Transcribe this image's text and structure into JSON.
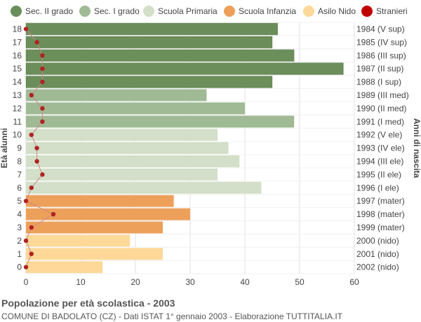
{
  "chart_data": {
    "type": "bar",
    "orientation": "horizontal",
    "title": "Popolazione per età scolastica - 2003",
    "subtitle": "COMUNE DI BADOLATO (CZ) - Dati ISTAT 1° gennaio 2003 - Elaborazione TUTTITALIA.IT",
    "ylabel_left": "Età alunni",
    "ylabel_right": "Anni di nascita",
    "xlim": [
      0,
      60
    ],
    "xticks": [
      0,
      10,
      20,
      30,
      40,
      50,
      60
    ],
    "grid": true,
    "legend_position": "top",
    "legend": [
      {
        "name": "Sec. II grado",
        "color": "#6b8e5a"
      },
      {
        "name": "Sec. I grado",
        "color": "#9fba94"
      },
      {
        "name": "Scuola Primaria",
        "color": "#d3dfc8"
      },
      {
        "name": "Scuola Infanzia",
        "color": "#eda05a"
      },
      {
        "name": "Asilo Nido",
        "color": "#fdd898"
      },
      {
        "name": "Stranieri",
        "color": "#c00000"
      }
    ],
    "rows": [
      {
        "age": "18",
        "birth": "1984 (V sup)",
        "value": 46,
        "stranieri": 0,
        "group": 0
      },
      {
        "age": "17",
        "birth": "1985 (IV sup)",
        "value": 45,
        "stranieri": 2,
        "group": 0
      },
      {
        "age": "16",
        "birth": "1986 (III sup)",
        "value": 49,
        "stranieri": 3,
        "group": 0
      },
      {
        "age": "15",
        "birth": "1987 (II sup)",
        "value": 58,
        "stranieri": 3,
        "group": 0
      },
      {
        "age": "14",
        "birth": "1988 (I sup)",
        "value": 45,
        "stranieri": 3,
        "group": 0
      },
      {
        "age": "13",
        "birth": "1989 (III med)",
        "value": 33,
        "stranieri": 1,
        "group": 1
      },
      {
        "age": "12",
        "birth": "1990 (II med)",
        "value": 40,
        "stranieri": 3,
        "group": 1
      },
      {
        "age": "11",
        "birth": "1991 (I med)",
        "value": 49,
        "stranieri": 3,
        "group": 1
      },
      {
        "age": "10",
        "birth": "1992 (V ele)",
        "value": 35,
        "stranieri": 1,
        "group": 2
      },
      {
        "age": "9",
        "birth": "1993 (IV ele)",
        "value": 37,
        "stranieri": 2,
        "group": 2
      },
      {
        "age": "8",
        "birth": "1994 (III ele)",
        "value": 39,
        "stranieri": 2,
        "group": 2
      },
      {
        "age": "7",
        "birth": "1995 (II ele)",
        "value": 35,
        "stranieri": 3,
        "group": 2
      },
      {
        "age": "6",
        "birth": "1996 (I ele)",
        "value": 43,
        "stranieri": 1,
        "group": 2
      },
      {
        "age": "5",
        "birth": "1997 (mater)",
        "value": 27,
        "stranieri": 0,
        "group": 3
      },
      {
        "age": "4",
        "birth": "1998 (mater)",
        "value": 30,
        "stranieri": 5,
        "group": 3
      },
      {
        "age": "3",
        "birth": "1999 (mater)",
        "value": 25,
        "stranieri": 1,
        "group": 3
      },
      {
        "age": "2",
        "birth": "2000 (nido)",
        "value": 19,
        "stranieri": 0,
        "group": 4
      },
      {
        "age": "1",
        "birth": "2001 (nido)",
        "value": 25,
        "stranieri": 1,
        "group": 4
      },
      {
        "age": "0",
        "birth": "2002 (nido)",
        "value": 14,
        "stranieri": 0,
        "group": 4
      }
    ]
  }
}
